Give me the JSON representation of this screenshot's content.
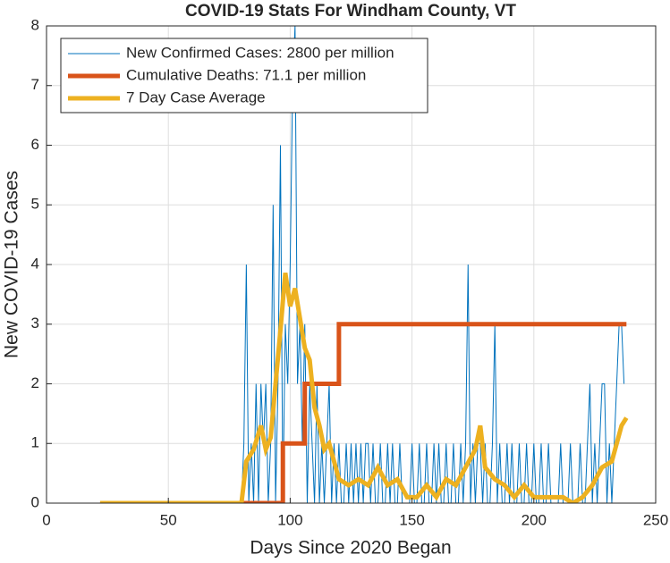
{
  "chart_data": {
    "type": "line",
    "title": "COVID-19 Stats For Windham County, VT",
    "xlabel": "Days Since 2020 Began",
    "ylabel": "New COVID-19 Cases",
    "xlim": [
      0,
      250
    ],
    "xticks": [
      0,
      50,
      100,
      150,
      200,
      250
    ],
    "ylim": [
      0,
      8
    ],
    "yticks": [
      0,
      1,
      2,
      3,
      4,
      5,
      6,
      7,
      8
    ],
    "grid": true,
    "legend": "top-left",
    "series": [
      {
        "name": "New Confirmed Cases: 2800 per million",
        "color": "#0072bd",
        "width": 1,
        "x": [
          22,
          80,
          81,
          82,
          83,
          84,
          85,
          86,
          87,
          88,
          89,
          90,
          91,
          92,
          93,
          94,
          95,
          96,
          97,
          98,
          99,
          100,
          101,
          102,
          103,
          104,
          105,
          106,
          107,
          108,
          109,
          110,
          111,
          112,
          113,
          114,
          115,
          116,
          117,
          118,
          119,
          120,
          121,
          122,
          123,
          124,
          125,
          126,
          127,
          128,
          129,
          130,
          131,
          132,
          133,
          134,
          135,
          136,
          137,
          138,
          139,
          140,
          141,
          142,
          143,
          144,
          145,
          146,
          147,
          148,
          149,
          150,
          151,
          152,
          153,
          154,
          155,
          156,
          157,
          158,
          159,
          160,
          161,
          162,
          163,
          164,
          165,
          166,
          167,
          168,
          169,
          170,
          171,
          172,
          173,
          174,
          175,
          176,
          177,
          178,
          179,
          180,
          181,
          182,
          183,
          184,
          185,
          186,
          187,
          188,
          189,
          190,
          191,
          192,
          193,
          194,
          195,
          196,
          197,
          198,
          199,
          200,
          201,
          202,
          203,
          204,
          205,
          206,
          207,
          208,
          209,
          210,
          211,
          212,
          213,
          214,
          215,
          216,
          217,
          218,
          219,
          220,
          221,
          222,
          223,
          224,
          225,
          226,
          227,
          228,
          229,
          230,
          231,
          232,
          233,
          234,
          235,
          236,
          237
        ],
        "values": [
          0,
          0,
          1,
          4,
          0,
          1,
          0,
          2,
          0,
          2,
          1,
          2,
          0,
          1,
          5,
          0,
          2,
          6,
          0,
          3,
          2,
          4,
          7,
          8,
          2,
          3,
          1,
          3,
          0,
          2,
          1,
          0,
          2,
          0,
          1,
          0,
          1,
          2,
          0,
          1,
          0,
          1,
          0,
          0,
          1,
          0,
          1,
          0,
          1,
          0,
          1,
          0,
          1,
          1,
          0,
          1,
          0,
          0,
          1,
          0,
          0,
          1,
          0,
          1,
          0,
          0,
          1,
          0,
          0,
          0,
          0,
          1,
          0,
          0,
          1,
          0,
          0,
          1,
          0,
          0,
          1,
          0,
          1,
          0,
          0,
          1,
          0,
          0,
          1,
          0,
          0,
          1,
          0,
          1,
          4,
          0,
          1,
          0,
          1,
          1,
          0,
          1,
          0,
          0,
          1,
          3,
          0,
          1,
          0,
          0,
          1,
          0,
          1,
          0,
          0,
          1,
          0,
          0,
          1,
          0,
          0,
          1,
          0,
          0,
          1,
          0,
          0,
          1,
          0,
          0,
          0,
          0,
          1,
          0,
          0,
          0,
          1,
          0,
          0,
          0,
          1,
          0,
          0,
          1,
          2,
          0,
          1,
          0,
          1,
          2,
          2,
          0,
          1,
          0,
          1,
          2,
          3,
          3,
          2
        ]
      },
      {
        "name": "Cumulative Deaths: 71.1 per million",
        "color": "#d95319",
        "width": 5,
        "x": [
          22,
          97,
          97,
          106,
          106,
          120,
          120,
          238
        ],
        "values": [
          0,
          0,
          1,
          1,
          2,
          2,
          3,
          3
        ]
      },
      {
        "name": "7 Day Case Average",
        "color": "#edb120",
        "width": 5,
        "x": [
          22,
          80,
          82,
          85,
          88,
          90,
          92,
          94,
          96,
          98,
          100,
          102,
          104,
          106,
          108,
          110,
          112,
          114,
          116,
          118,
          120,
          124,
          128,
          132,
          136,
          140,
          144,
          148,
          152,
          156,
          160,
          164,
          168,
          172,
          176,
          178,
          180,
          184,
          188,
          192,
          196,
          200,
          204,
          208,
          212,
          216,
          220,
          224,
          228,
          232,
          236,
          238
        ],
        "values": [
          0,
          0,
          0.7,
          0.9,
          1.3,
          0.9,
          1.1,
          2,
          2.9,
          3.86,
          3.3,
          3.6,
          3.1,
          2.6,
          2.4,
          1.6,
          1.3,
          0.9,
          1,
          0.7,
          0.4,
          0.3,
          0.4,
          0.3,
          0.6,
          0.3,
          0.4,
          0.1,
          0.1,
          0.3,
          0.1,
          0.4,
          0.3,
          0.6,
          0.9,
          1.3,
          0.6,
          0.4,
          0.3,
          0.1,
          0.3,
          0.1,
          0.1,
          0.1,
          0.1,
          0,
          0.1,
          0.3,
          0.6,
          0.7,
          1.3,
          1.43
        ]
      }
    ]
  }
}
